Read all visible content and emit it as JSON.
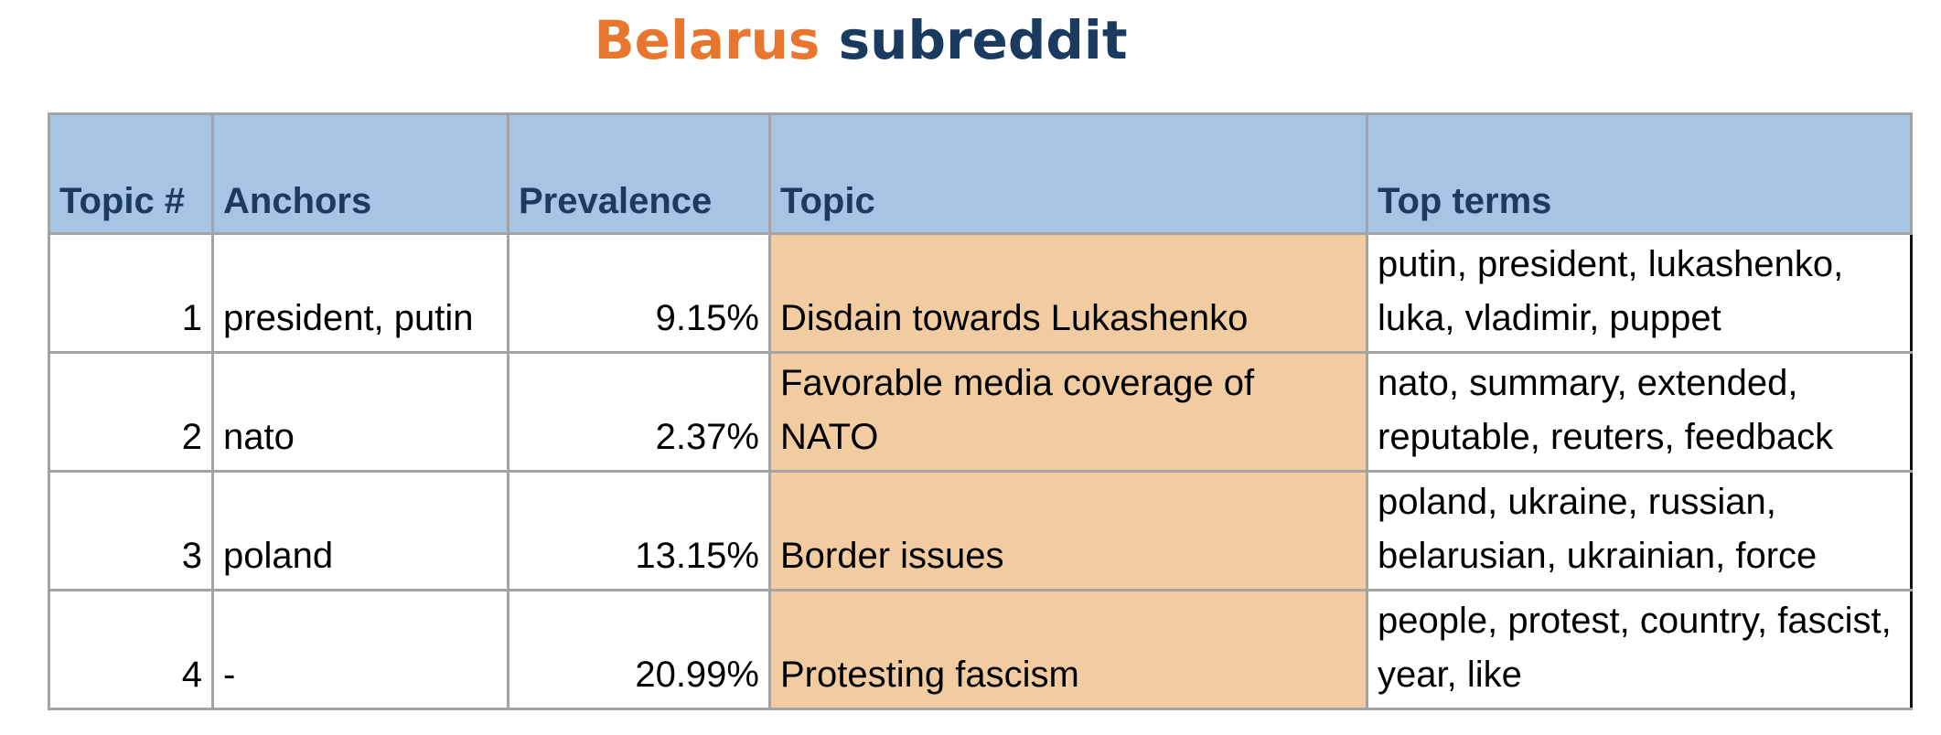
{
  "title": {
    "part1": "Belarus",
    "part2": "subreddit",
    "colors": {
      "part1": "#e8762f",
      "part2": "#1b3a60"
    }
  },
  "table": {
    "header_color": "#a6c4e4",
    "topic_cell_color": "#f2cca1",
    "columns": [
      "Topic #",
      "Anchors",
      "Prevalence",
      "Topic",
      "Top terms"
    ],
    "rows": [
      {
        "number": "1",
        "anchors": "president, putin",
        "prevalence": "9.15%",
        "topic": "Disdain towards Lukashenko",
        "top_terms": "putin, president, lukashenko, luka, vladimir, puppet"
      },
      {
        "number": "2",
        "anchors": "nato",
        "prevalence": "2.37%",
        "topic": "Favorable media coverage of NATO",
        "top_terms": "nato, summary, extended, reputable, reuters, feedback"
      },
      {
        "number": "3",
        "anchors": "poland",
        "prevalence": "13.15%",
        "topic": "Border issues",
        "top_terms": "poland, ukraine, russian, belarusian, ukrainian, force"
      },
      {
        "number": "4",
        "anchors": "-",
        "prevalence": "20.99%",
        "topic": "Protesting fascism",
        "top_terms": "people, protest, country, fascist, year, like"
      }
    ]
  }
}
